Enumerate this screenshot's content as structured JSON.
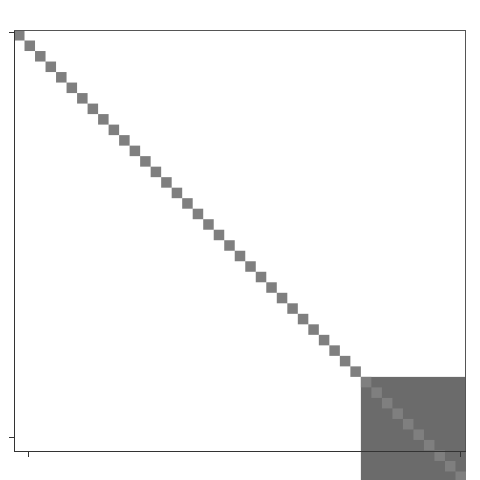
{
  "chart_data": {
    "type": "heatmap",
    "n": 43,
    "block_start": 33,
    "block_end": 42,
    "diagonal_color": "#7f7f7f",
    "block_color": "#6b6b6b",
    "background_color": "#ffffff",
    "grid": false,
    "legend": "none"
  }
}
